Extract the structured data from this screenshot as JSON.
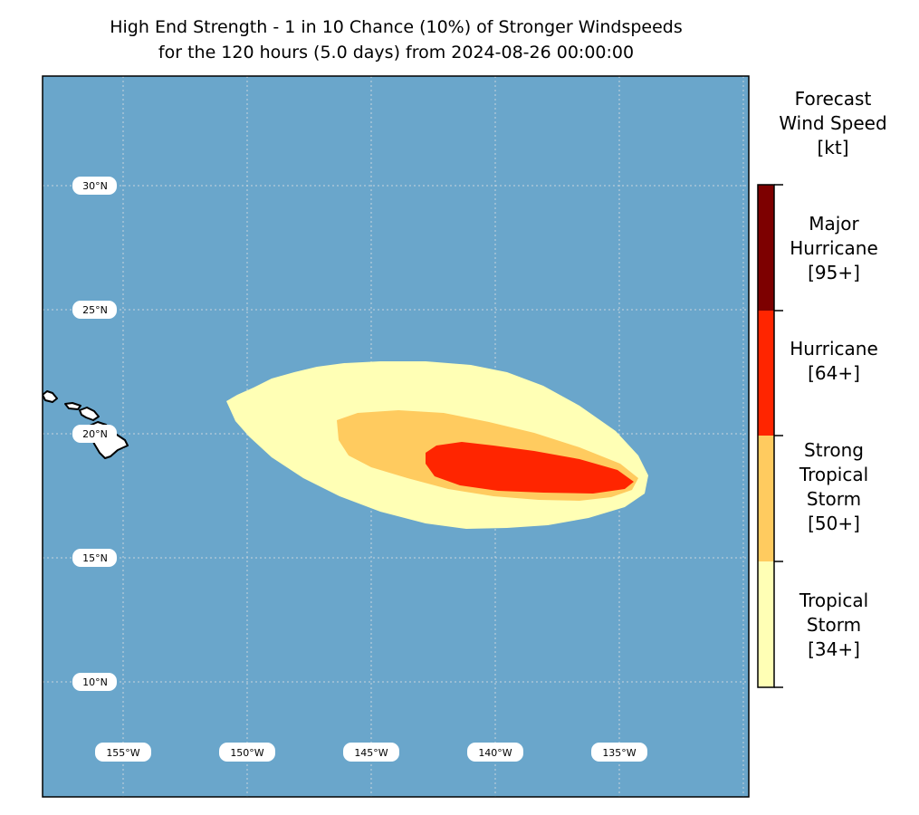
{
  "title": {
    "line1": "High End Strength - 1 in 10 Chance (10%) of Stronger Windspeeds",
    "line2": "for the 120 hours (5.0 days) from 2024-08-26 00:00:00"
  },
  "map": {
    "ocean_color": "#6aa6cb",
    "land_color": "#ffffff",
    "lat_labels": [
      "30°N",
      "25°N",
      "20°N",
      "15°N",
      "10°N"
    ],
    "lon_labels": [
      "155°W",
      "150°W",
      "145°W",
      "140°W",
      "135°W"
    ]
  },
  "colorbar": {
    "title_lines": [
      "Forecast",
      "Wind Speed",
      "[kt]"
    ],
    "categories": [
      {
        "lines": [
          "Major",
          "Hurricane",
          "[95+]"
        ],
        "color": "#7d0000"
      },
      {
        "lines": [
          "Hurricane",
          "[64+]"
        ],
        "color": "#ff2500"
      },
      {
        "lines": [
          "Strong",
          "Tropical",
          "Storm",
          "[50+]"
        ],
        "color": "#ffcb5f"
      },
      {
        "lines": [
          "Tropical",
          "Storm",
          "[34+]"
        ],
        "color": "#ffffb5"
      }
    ]
  }
}
